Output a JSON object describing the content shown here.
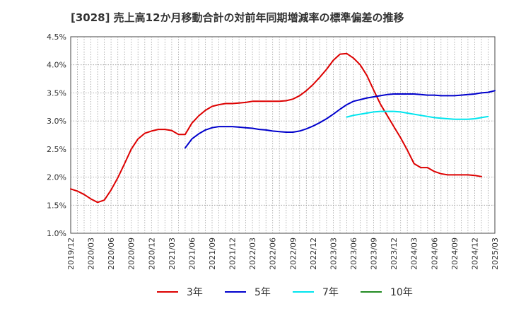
{
  "chart_data": {
    "type": "line",
    "title": "[3028]  売上高12か月移動合計の対前年同期増減率の標準偏差の推移",
    "xlabel": "",
    "ylabel": "",
    "ylim": [
      1.0,
      4.5
    ],
    "yticks": [
      "1.0%",
      "1.5%",
      "2.0%",
      "2.5%",
      "3.0%",
      "3.5%",
      "4.0%",
      "4.5%"
    ],
    "ytick_values": [
      1.0,
      1.5,
      2.0,
      2.5,
      3.0,
      3.5,
      4.0,
      4.5
    ],
    "x_start": "2019/12",
    "x_end": "2025/03",
    "x_ticks": [
      "2019/12",
      "2020/03",
      "2020/06",
      "2020/09",
      "2020/12",
      "2021/03",
      "2021/06",
      "2021/09",
      "2021/12",
      "2022/03",
      "2022/06",
      "2022/09",
      "2022/12",
      "2023/03",
      "2023/06",
      "2023/09",
      "2023/12",
      "2024/03",
      "2024/06",
      "2024/09",
      "2024/12",
      "2025/03"
    ],
    "grid": true,
    "legend_position": "bottom",
    "series": [
      {
        "name": "3年",
        "color": "#dd0000",
        "start": "2019/12",
        "values": [
          1.79,
          1.75,
          1.69,
          1.61,
          1.55,
          1.59,
          1.77,
          1.99,
          2.24,
          2.5,
          2.68,
          2.78,
          2.82,
          2.85,
          2.85,
          2.83,
          2.76,
          2.76,
          2.96,
          3.09,
          3.19,
          3.26,
          3.29,
          3.31,
          3.31,
          3.32,
          3.33,
          3.35,
          3.35,
          3.35,
          3.35,
          3.35,
          3.36,
          3.39,
          3.45,
          3.54,
          3.65,
          3.78,
          3.92,
          4.08,
          4.19,
          4.2,
          4.12,
          4.0,
          3.81,
          3.55,
          3.3,
          3.1,
          2.9,
          2.7,
          2.48,
          2.24,
          2.17,
          2.17,
          2.1,
          2.06,
          2.04,
          2.04,
          2.04,
          2.04,
          2.03,
          2.01
        ]
      },
      {
        "name": "5年",
        "color": "#0000cc",
        "start": "2021/05",
        "values": [
          2.52,
          2.68,
          2.77,
          2.84,
          2.88,
          2.9,
          2.9,
          2.9,
          2.89,
          2.88,
          2.87,
          2.85,
          2.84,
          2.82,
          2.81,
          2.8,
          2.8,
          2.82,
          2.86,
          2.91,
          2.97,
          3.04,
          3.12,
          3.21,
          3.29,
          3.35,
          3.38,
          3.41,
          3.43,
          3.45,
          3.47,
          3.48,
          3.48,
          3.48,
          3.48,
          3.47,
          3.46,
          3.46,
          3.45,
          3.45,
          3.45,
          3.46,
          3.47,
          3.48,
          3.5,
          3.51,
          3.54
        ]
      },
      {
        "name": "7年",
        "color": "#00e5ee",
        "start": "2023/05",
        "values": [
          3.07,
          3.1,
          3.12,
          3.14,
          3.16,
          3.17,
          3.17,
          3.17,
          3.16,
          3.14,
          3.12,
          3.1,
          3.08,
          3.06,
          3.05,
          3.04,
          3.03,
          3.03,
          3.03,
          3.04,
          3.06,
          3.08
        ]
      },
      {
        "name": "10年",
        "color": "#228b22",
        "start": "",
        "values": []
      }
    ]
  }
}
